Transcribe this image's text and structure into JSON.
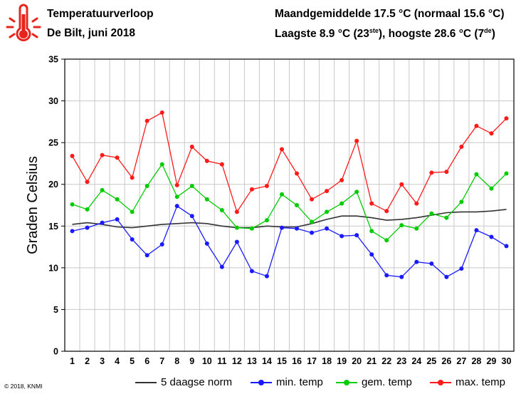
{
  "header": {
    "title": "Temperatuurverloop",
    "subtitle": "De Bilt, juni 2018",
    "stat1": "Maandgemiddelde 17.5 °C (normaal 15.6 °C)",
    "stat2_a": "Laagste 8.9 °C (23",
    "stat2_sup1": "ste",
    "stat2_b": "), hoogste 28.6 °C (7",
    "stat2_sup2": "de",
    "stat2_c": ")"
  },
  "credit": "© 2018, KNMI",
  "colors": {
    "norm": "#333333",
    "min": "#1a1aff",
    "gem": "#00cc00",
    "max": "#ff1a1a",
    "thermo": "#e8241c"
  },
  "chart_data": {
    "type": "line",
    "ylabel": "Graden Celsius",
    "xlabel": "",
    "ylim": [
      0,
      35
    ],
    "yticks": [
      0,
      5,
      10,
      15,
      20,
      25,
      30,
      35
    ],
    "grid": true,
    "legend_position": "bottom",
    "x": [
      1,
      2,
      3,
      4,
      5,
      6,
      7,
      8,
      9,
      10,
      11,
      12,
      13,
      14,
      15,
      16,
      17,
      18,
      19,
      20,
      21,
      22,
      23,
      24,
      25,
      26,
      27,
      28,
      29,
      30
    ],
    "series": [
      {
        "key": "norm",
        "name": "5 daagse norm",
        "markers": false,
        "values": [
          15.2,
          15.4,
          15.2,
          14.9,
          14.8,
          15.0,
          15.2,
          15.3,
          15.4,
          15.3,
          15.0,
          14.8,
          14.8,
          15.0,
          14.9,
          14.9,
          15.3,
          15.8,
          16.2,
          16.2,
          16.0,
          15.7,
          15.8,
          16.0,
          16.3,
          16.6,
          16.7,
          16.7,
          16.8,
          17.0
        ]
      },
      {
        "key": "min",
        "name": "min. temp",
        "markers": true,
        "values": [
          14.4,
          14.8,
          15.4,
          15.8,
          13.4,
          11.5,
          12.8,
          17.4,
          16.2,
          12.9,
          10.1,
          13.1,
          9.6,
          9.0,
          14.8,
          14.7,
          14.2,
          14.7,
          13.8,
          13.9,
          11.6,
          9.1,
          8.9,
          10.7,
          10.5,
          8.9,
          9.9,
          14.5,
          13.7,
          12.6
        ]
      },
      {
        "key": "gem",
        "name": "gem. temp",
        "markers": true,
        "values": [
          17.6,
          17.0,
          19.3,
          18.2,
          16.7,
          19.8,
          22.4,
          18.5,
          19.8,
          18.2,
          16.9,
          14.8,
          14.7,
          15.7,
          18.8,
          17.5,
          15.5,
          16.7,
          17.7,
          19.1,
          14.4,
          13.3,
          15.1,
          14.7,
          16.5,
          16.0,
          17.9,
          21.2,
          19.5,
          21.3
        ]
      },
      {
        "key": "max",
        "name": "max. temp",
        "markers": true,
        "values": [
          23.4,
          20.3,
          23.5,
          23.2,
          20.8,
          27.6,
          28.6,
          19.9,
          24.5,
          22.8,
          22.4,
          16.7,
          19.4,
          19.8,
          24.2,
          21.3,
          18.2,
          19.2,
          20.5,
          25.2,
          17.7,
          16.8,
          20.0,
          17.7,
          21.4,
          21.5,
          24.5,
          27.0,
          26.1,
          27.9
        ]
      }
    ]
  }
}
